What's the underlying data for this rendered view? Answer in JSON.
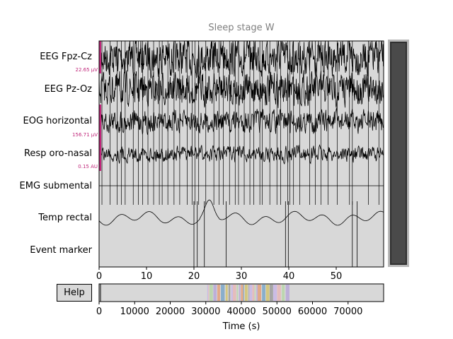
{
  "title": "Sleep stage W",
  "channels": [
    {
      "label": "EEG Fpz-Cz",
      "scale": "22.65 µV"
    },
    {
      "label": "EEG Pz-Oz",
      "scale": ""
    },
    {
      "label": "EOG horizontal",
      "scale": "156.71 µV"
    },
    {
      "label": "Resp oro-nasal",
      "scale": "0.15 AU"
    },
    {
      "label": "EMG submental",
      "scale": ""
    },
    {
      "label": "Temp rectal",
      "scale": ""
    },
    {
      "label": "Event marker",
      "scale": ""
    }
  ],
  "main_axis": {
    "xticks": [
      "0",
      "10",
      "20",
      "30",
      "40",
      "50"
    ],
    "xlim": [
      0,
      60
    ]
  },
  "overview_axis": {
    "xticks": [
      "0",
      "10000",
      "20000",
      "30000",
      "40000",
      "50000",
      "60000",
      "70000"
    ],
    "xlim": [
      0,
      80000
    ],
    "xlabel": "Time (s)"
  },
  "help_label": "Help",
  "colors": {
    "plot_bg": "#d8d8d8",
    "trace": "#000000",
    "scale_bar": "#c0267a",
    "scrollbar_thumb": "#4a4a4a"
  },
  "annotation_times": [
    0.6,
    2.3,
    3.8,
    4.7,
    5.5,
    7.2,
    8.3,
    9.2,
    10.3,
    11.5,
    12.7,
    13.3,
    14.5,
    15.8,
    17.0,
    18.6,
    19.6,
    20.2,
    21.0,
    22.5,
    24.2,
    25.3,
    26.2,
    27.5,
    28.7,
    29.4,
    30.6,
    31.8,
    32.6,
    33.9,
    34.4,
    36.0,
    37.5,
    38.3,
    39.8,
    40.2,
    41.0,
    42.3,
    44.4,
    45.6,
    46.8,
    48.3,
    50.2,
    52.8,
    53.4,
    56.8,
    59.0
  ]
}
